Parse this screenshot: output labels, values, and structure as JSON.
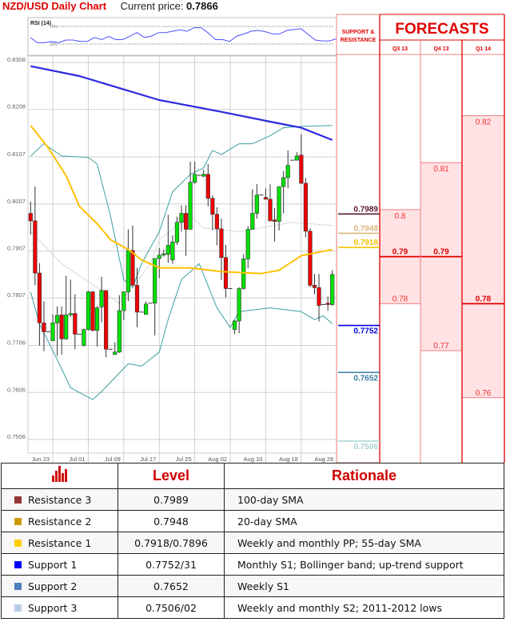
{
  "header": {
    "title": "NZD/USD Daily Chart",
    "current_price_label": "Current price:",
    "current_price": "0.7866"
  },
  "panel": {
    "sr_title_line1": "SUPPORT &",
    "sr_title_line2": "RESISTANCE",
    "forecasts_title": "FORECASTS"
  },
  "levels": [
    {
      "value": "0.7989",
      "num": 0.7989,
      "color": "#5a1a2e",
      "pos": "above"
    },
    {
      "value": "0.7948",
      "num": 0.7948,
      "color": "#d9b87a",
      "pos": "above"
    },
    {
      "value": "0.7918",
      "num": 0.7918,
      "color": "#f2c200",
      "pos": "above"
    },
    {
      "value": "0.7752",
      "num": 0.7752,
      "color": "#0000e0",
      "pos": "below"
    },
    {
      "value": "0.7652",
      "num": 0.7652,
      "color": "#3a7ea6",
      "pos": "below"
    },
    {
      "value": "0.7506",
      "num": 0.7506,
      "color": "#a9d2d2",
      "pos": "below"
    }
  ],
  "forecasts": [
    {
      "quarter": "Q3 13",
      "high": "0.8",
      "mid": "0.79",
      "low": "0.78",
      "high_num": 0.8,
      "mid_num": 0.79,
      "low_num": 0.78
    },
    {
      "quarter": "Q4 13",
      "high": "0.81",
      "mid": "0.79",
      "low": "0.77",
      "high_num": 0.81,
      "mid_num": 0.79,
      "low_num": 0.77
    },
    {
      "quarter": "Q1 14",
      "high": "0.82",
      "mid": "0.78",
      "low": "0.76",
      "high_num": 0.82,
      "mid_num": 0.78,
      "low_num": 0.76
    }
  ],
  "table": {
    "headers": {
      "level": "Level",
      "rationale": "Rationale"
    },
    "rows": [
      {
        "name": "Resistance 3",
        "level": "0.7989",
        "rationale": "100-day SMA",
        "color": "#953735"
      },
      {
        "name": "Resistance 2",
        "level": "0.7948",
        "rationale": "20-day SMA",
        "color": "#cc9a06"
      },
      {
        "name": "Resistance 1",
        "level": "0.7918/0.7896",
        "rationale": "Weekly and monthly PP; 55-day SMA",
        "color": "#ffcc00"
      },
      {
        "name": "Support 1",
        "level": "0.7752/31",
        "rationale": "Monthly S1; Bollinger band; up-trend support",
        "color": "#0000ff"
      },
      {
        "name": "Support 2",
        "level": "0.7652",
        "rationale": "Weekly S1",
        "color": "#4f81bd"
      },
      {
        "name": "Support 3",
        "level": "0.7506/02",
        "rationale": "Weekly and monthly S2; 2011-2012 lows",
        "color": "#b9cde5"
      }
    ]
  },
  "chart_data": {
    "type": "candlestick",
    "title": "NZD/USD Daily Chart",
    "ylim": [
      0.7506,
      0.8308
    ],
    "y_ticks": [
      "0.8308",
      "0.8208",
      "0.8107",
      "0.8007",
      "0.7907",
      "0.7807",
      "0.7706",
      "0.7606",
      "0.7506"
    ],
    "x_ticks": [
      {
        "date": "06-23",
        "label": "Jun 23"
      },
      {
        "date": "07-01",
        "label": "Jul 01"
      },
      {
        "date": "07-09",
        "label": "Jul 09"
      },
      {
        "date": "07-17",
        "label": "Jul 17"
      },
      {
        "date": "07-25",
        "label": "Jul 25"
      },
      {
        "date": "08-02",
        "label": "Aug 02"
      },
      {
        "date": "08-10",
        "label": "Aug 10"
      },
      {
        "date": "08-18",
        "label": "Aug 18"
      },
      {
        "date": "08-26",
        "label": "Aug 26"
      }
    ],
    "grid": true,
    "colors": {
      "up": "#00e000",
      "down": "#ee0000",
      "sma100": "#2a2ae0",
      "sma55": "#ffc000",
      "bollinger": "#3aa0a0",
      "bollinger_mid": "#d8d8d8"
    },
    "candles_columns": [
      "date",
      "open",
      "high",
      "low",
      "close"
    ],
    "candles": [
      [
        "06-18",
        0.7987,
        0.8012,
        0.7942,
        0.7971
      ],
      [
        "06-19",
        0.7971,
        0.8044,
        0.7834,
        0.786
      ],
      [
        "06-20",
        0.786,
        0.7881,
        0.7706,
        0.7754
      ],
      [
        "06-21",
        0.7754,
        0.78,
        0.7694,
        0.7735
      ],
      [
        "06-22",
        0.7735,
        0.7735,
        0.7735,
        0.7735
      ],
      [
        "06-23",
        0.7716,
        0.7772,
        0.7716,
        0.7754
      ],
      [
        "06-24",
        0.7754,
        0.7789,
        0.7684,
        0.777
      ],
      [
        "06-25",
        0.7771,
        0.7789,
        0.7686,
        0.772
      ],
      [
        "06-26",
        0.772,
        0.7854,
        0.7718,
        0.7771
      ],
      [
        "06-27",
        0.7771,
        0.7846,
        0.7766,
        0.7774
      ],
      [
        "06-28",
        0.7774,
        0.7815,
        0.7698,
        0.773
      ],
      [
        "06-29",
        0.773,
        0.773,
        0.773,
        0.773
      ],
      [
        "06-30",
        0.7706,
        0.7742,
        0.7704,
        0.774
      ],
      [
        "07-01",
        0.774,
        0.7822,
        0.7738,
        0.782
      ],
      [
        "07-02",
        0.782,
        0.7822,
        0.7736,
        0.7738
      ],
      [
        "07-03",
        0.7738,
        0.779,
        0.7704,
        0.7786
      ],
      [
        "07-04",
        0.7788,
        0.7852,
        0.7755,
        0.7823
      ],
      [
        "07-05",
        0.7823,
        0.7823,
        0.7681,
        0.7698
      ],
      [
        "07-06",
        0.7698,
        0.7698,
        0.7698,
        0.7698
      ],
      [
        "07-07",
        0.7687,
        0.7713,
        0.7687,
        0.7692
      ],
      [
        "07-08",
        0.7692,
        0.7813,
        0.769,
        0.778
      ],
      [
        "07-09",
        0.778,
        0.7813,
        0.776,
        0.782
      ],
      [
        "07-10",
        0.782,
        0.7953,
        0.78,
        0.7908
      ],
      [
        "07-11",
        0.7908,
        0.7961,
        0.7834,
        0.7834
      ],
      [
        "07-12",
        0.7834,
        0.7871,
        0.7745,
        0.7777
      ],
      [
        "07-13",
        0.7777,
        0.7777,
        0.7777,
        0.7777
      ],
      [
        "07-14",
        0.7772,
        0.78,
        0.7772,
        0.7794
      ],
      [
        "07-15",
        0.7796,
        0.7796,
        0.7796,
        0.7796
      ],
      [
        "07-16",
        0.7796,
        0.7891,
        0.7727,
        0.7891
      ],
      [
        "07-17",
        0.7891,
        0.7913,
        0.7849,
        0.7898
      ],
      [
        "07-18",
        0.7899,
        0.791,
        0.7895,
        0.7901
      ],
      [
        "07-19",
        0.79,
        0.7984,
        0.7882,
        0.7919
      ],
      [
        "07-20",
        0.7888,
        0.794,
        0.788,
        0.7926
      ],
      [
        "07-21",
        0.7926,
        0.798,
        0.792,
        0.7968
      ],
      [
        "07-22",
        0.7968,
        0.8004,
        0.7948,
        0.7987
      ],
      [
        "07-23",
        0.7987,
        0.8004,
        0.7897,
        0.7953
      ],
      [
        "07-24",
        0.7953,
        0.8097,
        0.7953,
        0.8053
      ],
      [
        "07-25",
        0.8053,
        0.8097,
        0.805,
        0.807
      ],
      [
        "07-26",
        0.8068,
        0.8068,
        0.8068,
        0.8068
      ],
      [
        "07-27",
        0.8066,
        0.808,
        0.8064,
        0.807
      ],
      [
        "07-28",
        0.807,
        0.8092,
        0.8002,
        0.8019
      ],
      [
        "07-29",
        0.8019,
        0.8025,
        0.7951,
        0.7985
      ],
      [
        "07-30",
        0.7985,
        0.8,
        0.7919,
        0.7954
      ],
      [
        "07-31",
        0.7954,
        0.7976,
        0.7845,
        0.7893
      ],
      [
        "08-01",
        0.7893,
        0.792,
        0.7808,
        0.7827
      ],
      [
        "08-02",
        0.7827,
        0.7827,
        0.7827,
        0.7827
      ],
      [
        "08-03",
        0.774,
        0.776,
        0.773,
        0.7758
      ],
      [
        "08-04",
        0.7758,
        0.783,
        0.7732,
        0.7827
      ],
      [
        "08-05",
        0.7827,
        0.79,
        0.7825,
        0.789
      ],
      [
        "08-06",
        0.789,
        0.796,
        0.787,
        0.7953
      ],
      [
        "08-07",
        0.7953,
        0.8038,
        0.7953,
        0.7987
      ],
      [
        "08-08",
        0.7987,
        0.8049,
        0.7976,
        0.8026
      ],
      [
        "08-09",
        0.8026,
        0.8026,
        0.8026,
        0.8026
      ],
      [
        "08-10",
        0.8021,
        0.804,
        0.8017,
        0.8017
      ],
      [
        "08-11",
        0.8017,
        0.8049,
        0.7971,
        0.7971
      ],
      [
        "08-12",
        0.7973,
        0.7998,
        0.7927,
        0.797
      ],
      [
        "08-13",
        0.797,
        0.8044,
        0.7951,
        0.8044
      ],
      [
        "08-14",
        0.8044,
        0.8077,
        0.7987,
        0.8063
      ],
      [
        "08-15",
        0.8063,
        0.8121,
        0.804,
        0.8089
      ],
      [
        "08-16",
        0.81,
        0.81,
        0.81,
        0.81
      ],
      [
        "08-17",
        0.81,
        0.8117,
        0.81,
        0.8109
      ],
      [
        "08-18",
        0.8111,
        0.8155,
        0.8049,
        0.8051
      ],
      [
        "08-19",
        0.8051,
        0.8062,
        0.7936,
        0.7949
      ],
      [
        "08-20",
        0.7949,
        0.7955,
        0.783,
        0.7834
      ],
      [
        "08-21",
        0.7834,
        0.7858,
        0.7815,
        0.7829
      ],
      [
        "08-22",
        0.7829,
        0.7858,
        0.7757,
        0.7791
      ],
      [
        "08-23",
        0.7793,
        0.7793,
        0.7793,
        0.7793
      ],
      [
        "08-24",
        0.7796,
        0.781,
        0.778,
        0.7793
      ],
      [
        "08-25",
        0.7793,
        0.7866,
        0.779,
        0.7857
      ]
    ],
    "sma100": [
      [
        "06-18",
        0.83
      ],
      [
        "06-29",
        0.8279
      ],
      [
        "07-17",
        0.8228
      ],
      [
        "07-31",
        0.8203
      ],
      [
        "08-11",
        0.8182
      ],
      [
        "08-18",
        0.8169
      ],
      [
        "08-25",
        0.8143
      ]
    ],
    "sma55": [
      [
        "06-18",
        0.8174
      ],
      [
        "06-22",
        0.8126
      ],
      [
        "06-26",
        0.8067
      ],
      [
        "06-29",
        0.8002
      ],
      [
        "07-03",
        0.7965
      ],
      [
        "07-06",
        0.7931
      ],
      [
        "07-10",
        0.791
      ],
      [
        "07-13",
        0.7888
      ],
      [
        "07-17",
        0.7871
      ],
      [
        "07-24",
        0.7871
      ],
      [
        "07-31",
        0.7863
      ],
      [
        "08-09",
        0.7859
      ],
      [
        "08-13",
        0.7866
      ],
      [
        "08-18",
        0.7897
      ],
      [
        "08-25",
        0.791
      ]
    ],
    "bollinger_upper": [
      [
        "06-18",
        0.8109
      ],
      [
        "06-21",
        0.8135
      ],
      [
        "06-25",
        0.8109
      ],
      [
        "07-01",
        0.8106
      ],
      [
        "07-03",
        0.8092
      ],
      [
        "07-06",
        0.7982
      ],
      [
        "07-09",
        0.7846
      ],
      [
        "07-11",
        0.7829
      ],
      [
        "07-13",
        0.788
      ],
      [
        "07-17",
        0.7948
      ],
      [
        "07-20",
        0.8033
      ],
      [
        "07-24",
        0.807
      ],
      [
        "07-27",
        0.8084
      ],
      [
        "07-29",
        0.8121
      ],
      [
        "07-31",
        0.8112
      ],
      [
        "08-04",
        0.8135
      ],
      [
        "08-07",
        0.8135
      ],
      [
        "08-11",
        0.8152
      ],
      [
        "08-14",
        0.8169
      ],
      [
        "08-18",
        0.8172
      ],
      [
        "08-25",
        0.8174
      ]
    ],
    "bollinger_lower": [
      [
        "06-18",
        0.782
      ],
      [
        "06-20",
        0.7752
      ],
      [
        "06-24",
        0.7676
      ],
      [
        "06-27",
        0.7616
      ],
      [
        "07-02",
        0.7591
      ],
      [
        "07-04",
        0.7608
      ],
      [
        "07-10",
        0.7667
      ],
      [
        "07-13",
        0.7662
      ],
      [
        "07-17",
        0.7692
      ],
      [
        "07-19",
        0.7761
      ],
      [
        "07-22",
        0.7846
      ],
      [
        "07-26",
        0.788
      ],
      [
        "07-30",
        0.7786
      ],
      [
        "08-02",
        0.7744
      ],
      [
        "08-04",
        0.7778
      ],
      [
        "08-11",
        0.7786
      ],
      [
        "08-18",
        0.7778
      ],
      [
        "08-21",
        0.7761
      ],
      [
        "08-23",
        0.7769
      ],
      [
        "08-25",
        0.7752
      ]
    ],
    "bollinger_mid": [
      [
        "06-18",
        0.7948
      ],
      [
        "06-25",
        0.788
      ],
      [
        "07-03",
        0.7829
      ],
      [
        "07-08",
        0.7795
      ],
      [
        "07-11",
        0.7829
      ],
      [
        "07-15",
        0.788
      ],
      [
        "07-17",
        0.7931
      ],
      [
        "07-24",
        0.7982
      ],
      [
        "07-27",
        0.7956
      ],
      [
        "08-04",
        0.7948
      ],
      [
        "08-11",
        0.796
      ],
      [
        "08-16",
        0.7968
      ],
      [
        "08-25",
        0.7961
      ]
    ],
    "rsi": {
      "label": "RSI (14)",
      "levels": [
        "70%",
        "30%"
      ],
      "level_values": [
        70,
        30
      ],
      "values": [
        45,
        33,
        33,
        36,
        33,
        39,
        39,
        36,
        36,
        45,
        40,
        47,
        40,
        40,
        48,
        56,
        45,
        48,
        56,
        56,
        59,
        62,
        59,
        67,
        67,
        55,
        40,
        40,
        36,
        48,
        53,
        59,
        61,
        58,
        53,
        53,
        61,
        63,
        65,
        52,
        39,
        37,
        37,
        42
      ]
    }
  }
}
